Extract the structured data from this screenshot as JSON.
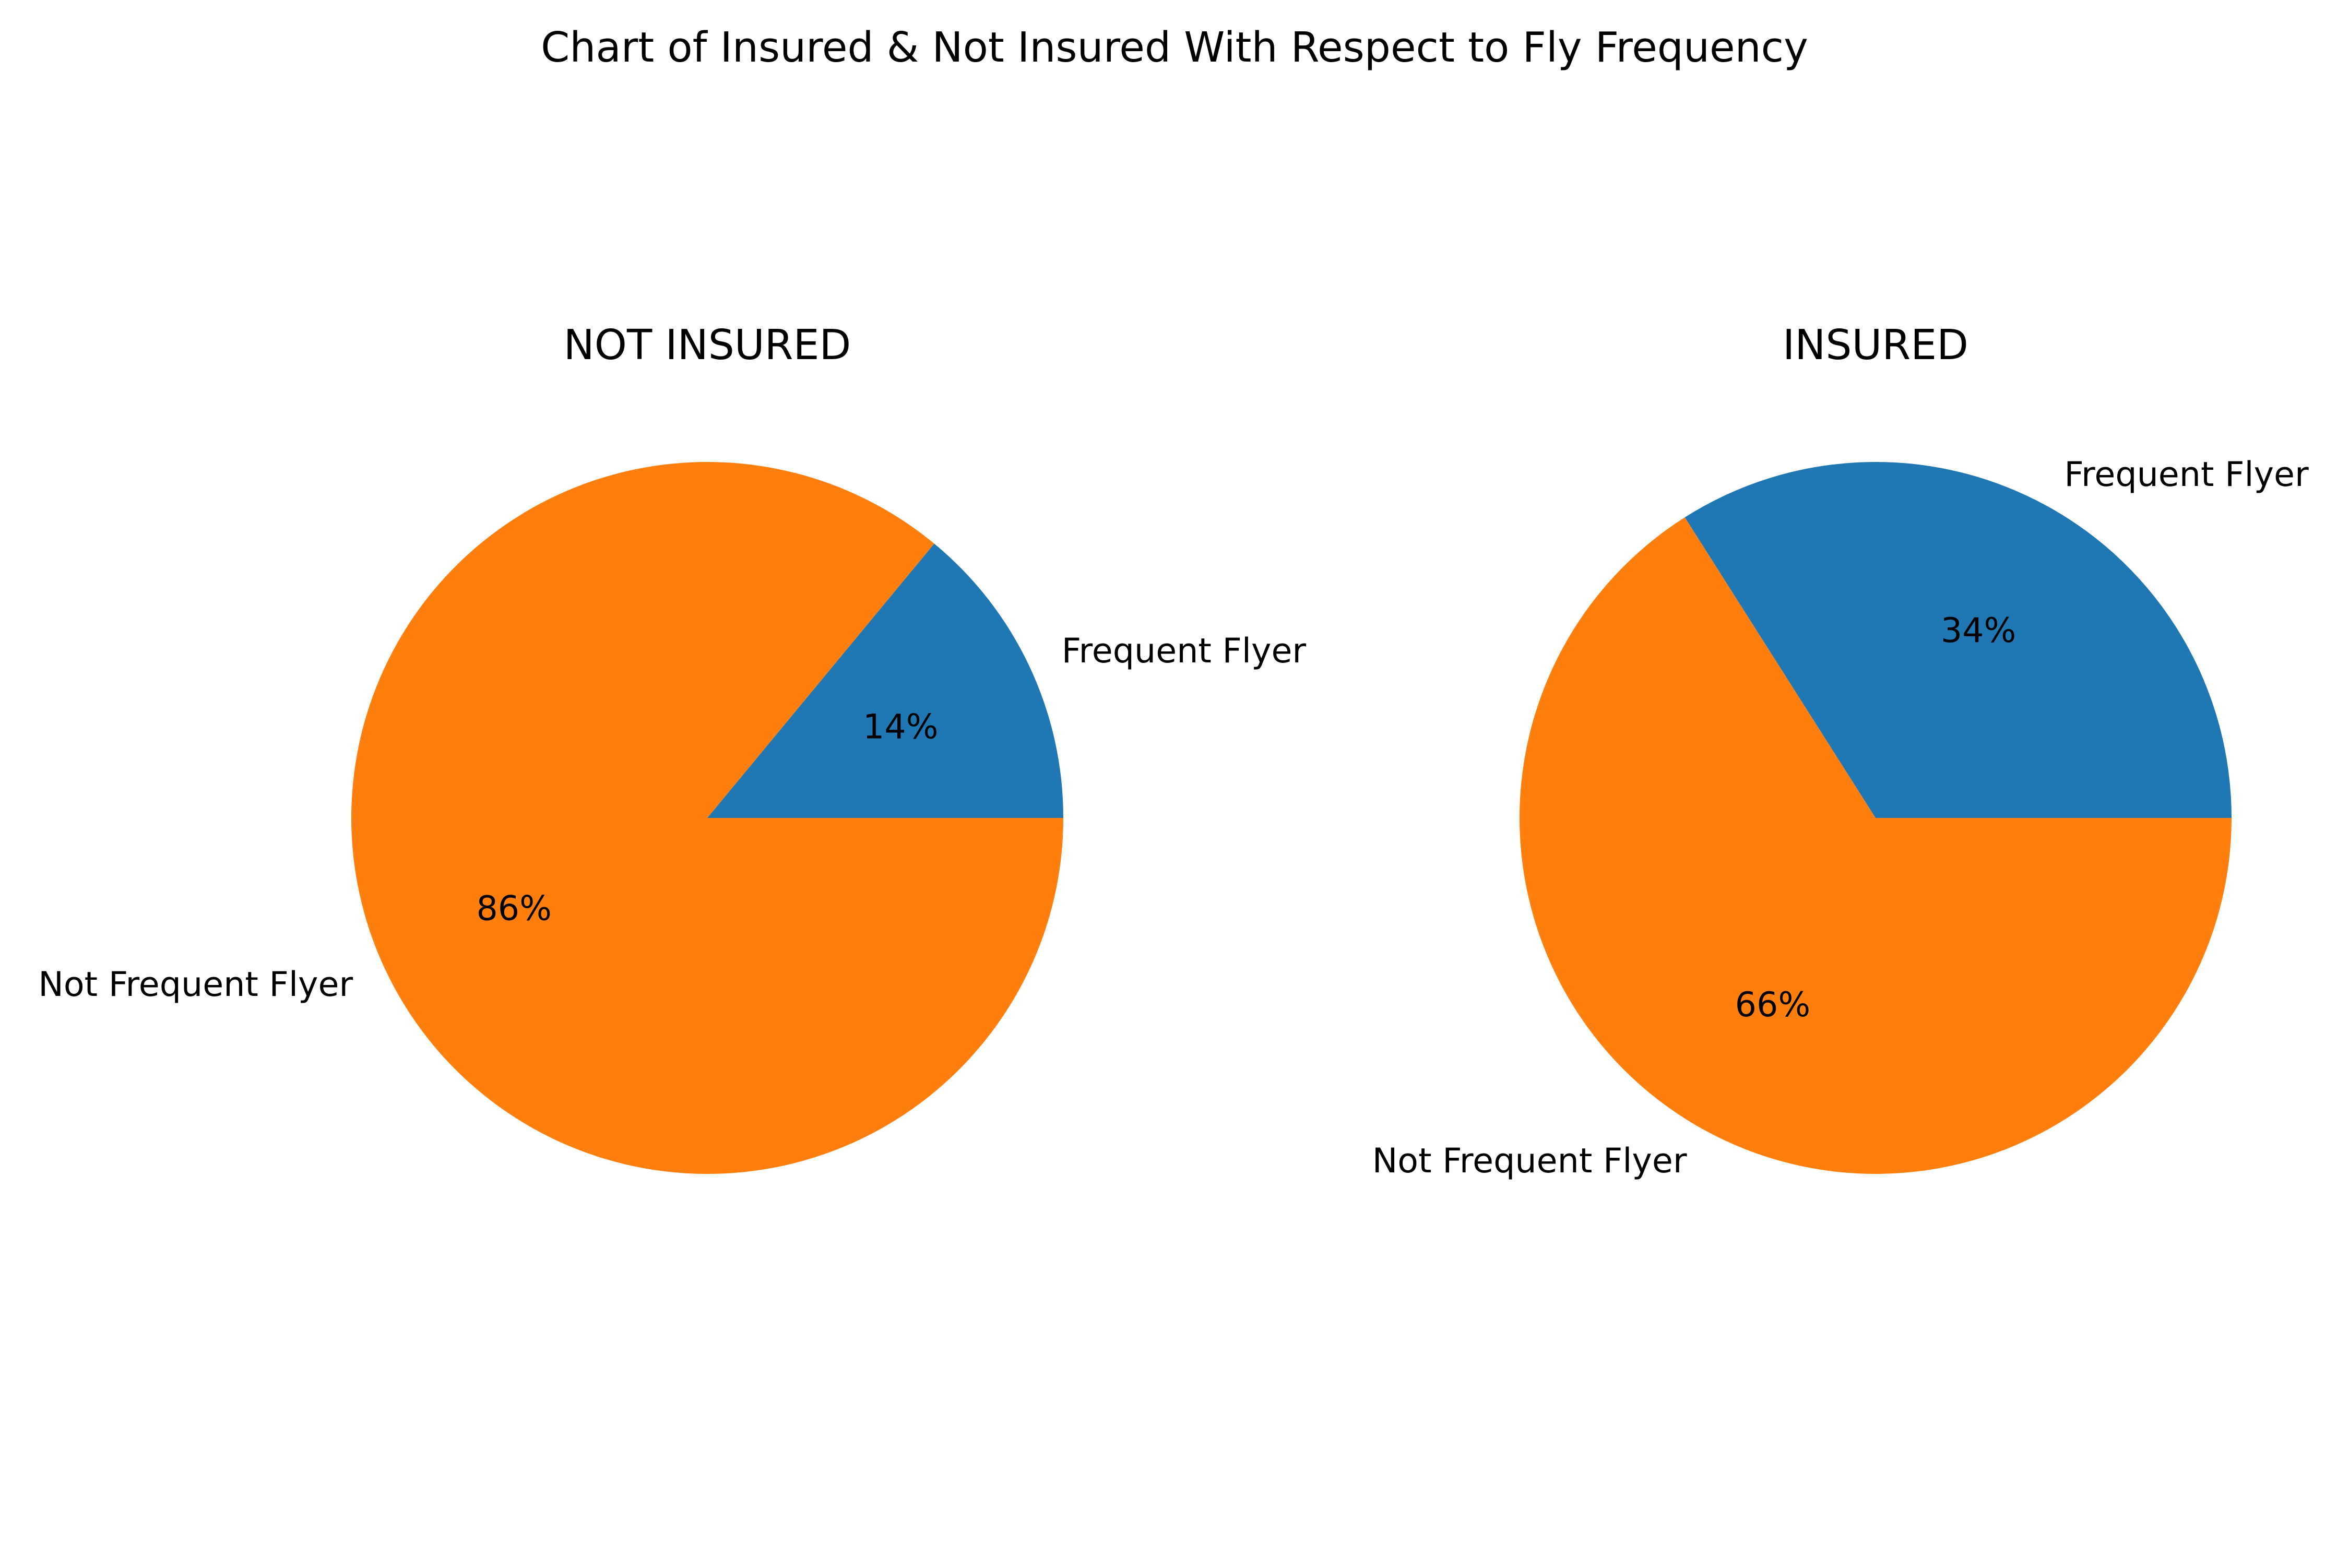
{
  "chart_data": {
    "type": "pie",
    "title": "Chart of Insured & Not Insured With Respect to Fly Frequency",
    "colors": [
      "#1f77b4",
      "#ff7f0e"
    ],
    "pies": [
      {
        "title": "NOT INSURED",
        "slices": [
          {
            "label": "Frequent Flyer",
            "value": 14,
            "pct_label": "14%"
          },
          {
            "label": "Not Frequent Flyer",
            "value": 86,
            "pct_label": "86%"
          }
        ]
      },
      {
        "title": "INSURED",
        "slices": [
          {
            "label": "Frequent Flyer",
            "value": 34,
            "pct_label": "34%"
          },
          {
            "label": "Not Frequent Flyer",
            "value": 66,
            "pct_label": "66%"
          }
        ]
      }
    ]
  }
}
